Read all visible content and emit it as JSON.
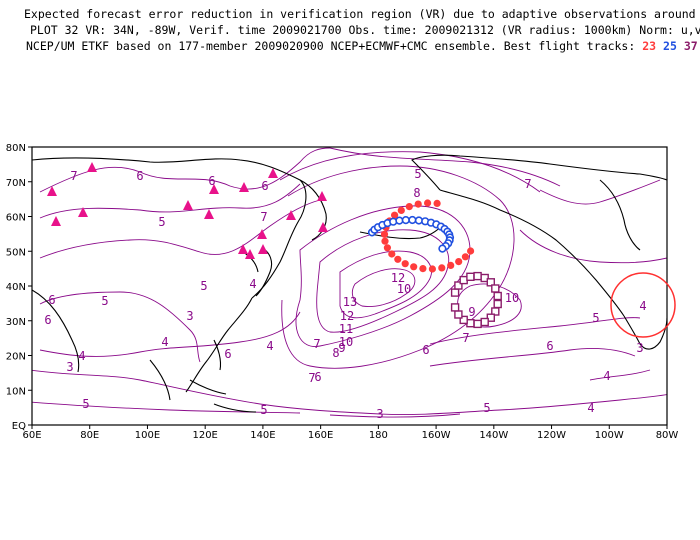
{
  "header": {
    "line1": "Expected forecast error reduction in verification region (VR) due to adaptive observations around any grid point.",
    "line2": "PLOT 32 VR: 34N, -89W, Verif. time 2009021700 Obs. time: 2009021312 (VR radius: 1000km) Norm: u,v,T",
    "line3_prefix": "NCEP/UM ETKF based on 177-member 2009020900 NCEP+ECMWF+CMC ensemble. Best flight tracks:",
    "tracks": [
      {
        "label": "23",
        "color": "#ff3c3c"
      },
      {
        "label": "25",
        "color": "#2050e0"
      },
      {
        "label": "37",
        "color": "#8b1c6a"
      }
    ]
  },
  "map": {
    "lat_labels": [
      "80N",
      "70N",
      "60N",
      "50N",
      "40N",
      "30N",
      "20N",
      "10N",
      "EQ"
    ],
    "lon_labels": [
      "60E",
      "80E",
      "100E",
      "120E",
      "140E",
      "160E",
      "180",
      "160W",
      "140W",
      "120W",
      "100W",
      "80W"
    ],
    "colors": {
      "contour": "#8a0a8a",
      "coast": "#000000",
      "triangle": "#e8128a",
      "vr_circle": "#ff3030"
    },
    "contour_labels": [
      "7",
      "6",
      "5",
      "6",
      "7",
      "6",
      "5",
      "8",
      "6",
      "6",
      "13",
      "12",
      "11",
      "10",
      "9",
      "8",
      "7",
      "6",
      "10",
      "12",
      "10",
      "9",
      "7",
      "7",
      "6",
      "5",
      "4",
      "3",
      "5",
      "4",
      "6",
      "5",
      "4",
      "3",
      "4",
      "5",
      "3",
      "5",
      "6",
      "7",
      "4",
      "5",
      "4",
      "3"
    ],
    "verification_region": {
      "center_lat": 34,
      "center_lon": -89,
      "radius_km": 1000,
      "value_label": "4"
    },
    "observation_sites_icon": "triangle-icon"
  }
}
